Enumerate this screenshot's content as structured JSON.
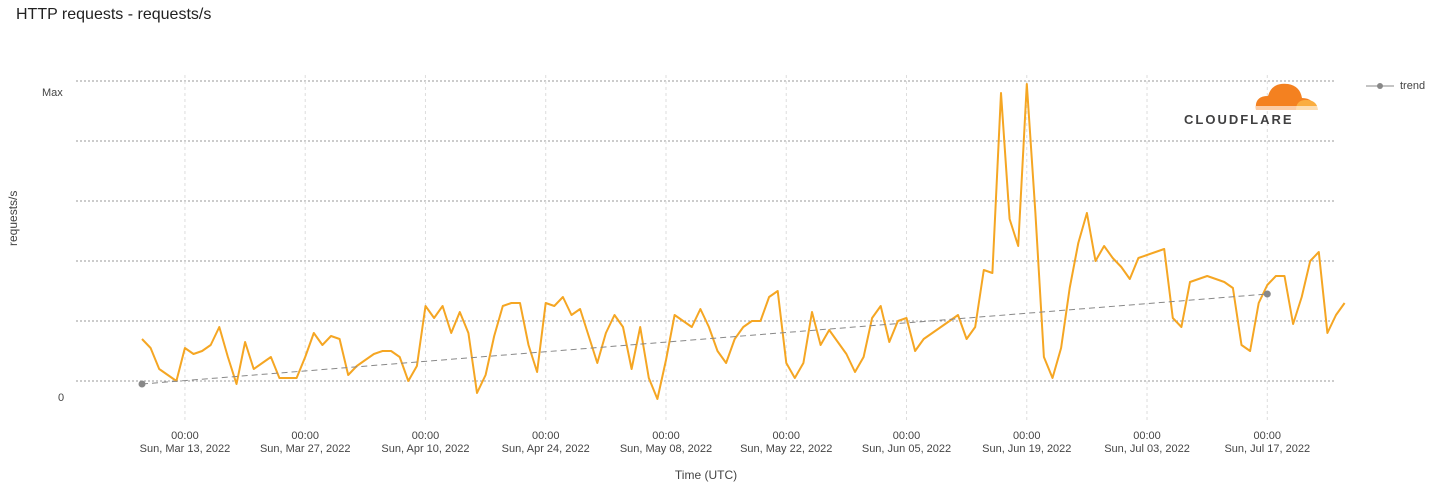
{
  "title": "HTTP requests - requests/s",
  "brand": {
    "name": "CLOUDFLARE",
    "orange": "#F48120",
    "light_orange": "#FAAD3F"
  },
  "legend": {
    "label": "trend",
    "icon": "line-dot-icon"
  },
  "chart_data": {
    "type": "line",
    "xlabel": "Time (UTC)",
    "ylabel": "requests/s",
    "y_ticks": [
      "Max",
      "0"
    ],
    "x_ticks": [
      {
        "time": "00:00",
        "date": "Sun, Mar 13, 2022"
      },
      {
        "time": "00:00",
        "date": "Sun, Mar 27, 2022"
      },
      {
        "time": "00:00",
        "date": "Sun, Apr 10, 2022"
      },
      {
        "time": "00:00",
        "date": "Sun, Apr 24, 2022"
      },
      {
        "time": "00:00",
        "date": "Sun, May 08, 2022"
      },
      {
        "time": "00:00",
        "date": "Sun, May 22, 2022"
      },
      {
        "time": "00:00",
        "date": "Sun, Jun 05, 2022"
      },
      {
        "time": "00:00",
        "date": "Sun, Jun 19, 2022"
      },
      {
        "time": "00:00",
        "date": "Sun, Jul 03, 2022"
      },
      {
        "time": "00:00",
        "date": "Sun, Jul 17, 2022"
      }
    ],
    "x_start": "2022-03-08",
    "x_step_days": 1,
    "ylim": [
      0,
      1
    ],
    "grid": true,
    "legend_position": "top-right",
    "series": [
      {
        "color": "#F5A623",
        "values": [
          0.18,
          0.15,
          0.08,
          0.06,
          0.04,
          0.15,
          0.13,
          0.14,
          0.16,
          0.22,
          0.12,
          0.03,
          0.17,
          0.08,
          0.1,
          0.12,
          0.05,
          0.05,
          0.05,
          0.12,
          0.2,
          0.16,
          0.19,
          0.18,
          0.06,
          0.09,
          0.11,
          0.13,
          0.14,
          0.14,
          0.12,
          0.04,
          0.09,
          0.29,
          0.25,
          0.29,
          0.2,
          0.27,
          0.2,
          0.0,
          0.06,
          0.19,
          0.29,
          0.3,
          0.3,
          0.16,
          0.07,
          0.3,
          0.29,
          0.32,
          0.26,
          0.28,
          0.19,
          0.1,
          0.2,
          0.26,
          0.22,
          0.08,
          0.22,
          0.05,
          -0.02,
          0.11,
          0.26,
          0.24,
          0.22,
          0.28,
          0.22,
          0.14,
          0.1,
          0.18,
          0.22,
          0.24,
          0.24,
          0.32,
          0.34,
          0.1,
          0.05,
          0.1,
          0.27,
          0.16,
          0.21,
          0.17,
          0.13,
          0.07,
          0.12,
          0.25,
          0.29,
          0.17,
          0.24,
          0.25,
          0.14,
          0.18,
          0.2,
          0.22,
          0.24,
          0.26,
          0.18,
          0.22,
          0.41,
          0.4,
          1.0,
          0.58,
          0.49,
          1.03,
          0.6,
          0.12,
          0.05,
          0.15,
          0.35,
          0.5,
          0.6,
          0.44,
          0.49,
          0.45,
          0.42,
          0.38,
          0.45,
          0.46,
          0.47,
          0.48,
          0.25,
          0.22,
          0.37,
          0.38,
          0.39,
          0.38,
          0.37,
          0.35,
          0.16,
          0.14,
          0.3,
          0.36,
          0.39,
          0.39,
          0.23,
          0.32,
          0.44,
          0.47,
          0.2,
          0.26,
          0.3
        ]
      },
      {
        "name": "trend",
        "color": "#888888",
        "dashed": true,
        "points": [
          {
            "date": "2022-03-08",
            "value": 0.03
          },
          {
            "date": "2022-07-17",
            "value": 0.33
          }
        ]
      }
    ]
  }
}
